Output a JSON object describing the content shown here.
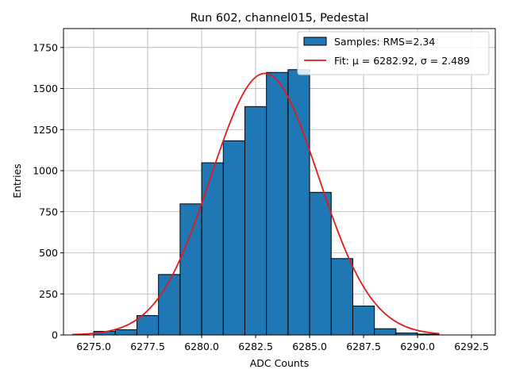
{
  "chart_data": {
    "type": "bar",
    "title": "Run 602, channel015, Pedestal",
    "xlabel": "ADC Counts",
    "ylabel": "Entries",
    "xlim": [
      6273.6,
      6293.6
    ],
    "ylim": [
      0,
      1865
    ],
    "grid": true,
    "legend_position": "top-right",
    "x_ticks": [
      6275.0,
      6277.5,
      6280.0,
      6282.5,
      6285.0,
      6287.5,
      6290.0,
      6292.5
    ],
    "y_ticks": [
      0,
      250,
      500,
      750,
      1000,
      1250,
      1500,
      1750
    ],
    "bin_edges": [
      6275,
      6276,
      6277,
      6278,
      6279,
      6280,
      6281,
      6282,
      6283,
      6284,
      6285,
      6286,
      6287,
      6288,
      6289,
      6290,
      6291
    ],
    "values": [
      22,
      32,
      118,
      368,
      798,
      1048,
      1182,
      1390,
      1598,
      1615,
      868,
      465,
      176,
      38,
      12,
      5
    ],
    "bar_color": "#1f77b4",
    "series": [
      {
        "name": "Samples: RMS=2.34",
        "kind": "histogram",
        "color": "#1f77b4"
      },
      {
        "name": "Fit: μ = 6282.92, σ = 2.489",
        "kind": "gaussian",
        "color": "#e31a1c",
        "mu": 6282.92,
        "sigma": 2.489,
        "amplitude": 1592,
        "x_range": [
          6274.0,
          6291.0
        ]
      }
    ]
  }
}
